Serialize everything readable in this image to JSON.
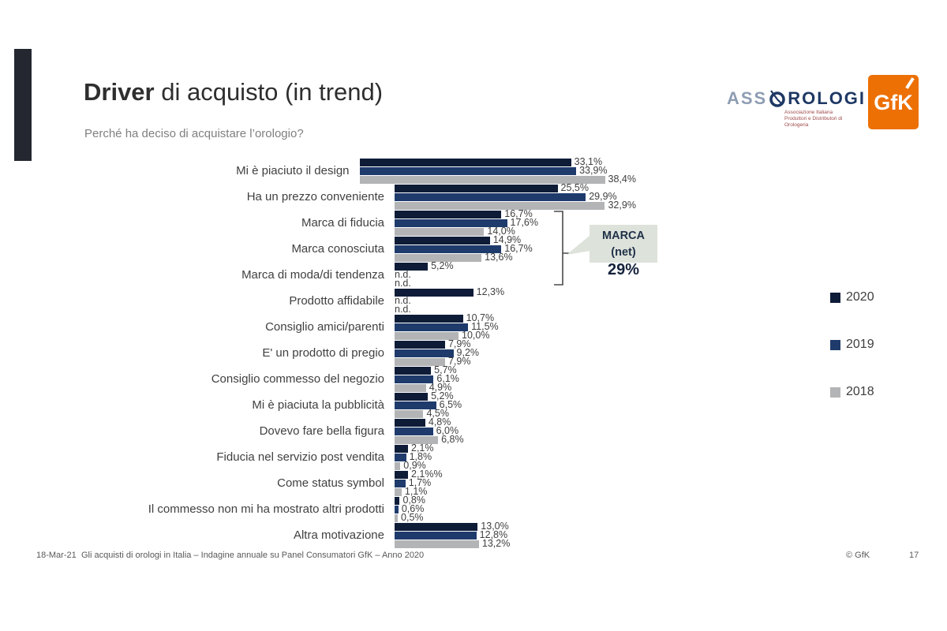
{
  "slide": {
    "title_bold": "Driver",
    "title_rest": " di acquisto (in trend)",
    "subtitle": "Perché ha deciso di acquistare l’orologio?",
    "footer": {
      "date": "18-Mar-21",
      "text": "Gli acquisti di orologi in Italia – Indagine annuale su Panel Consumatori GfK – Anno 2020",
      "copyright": "© GfK",
      "page": "17"
    },
    "logos": {
      "assorologi_pre": "ASS",
      "assorologi_post": "ROLOGI",
      "assorologi_sub1": "Associazione Italiana",
      "assorologi_sub2": "Produttori e Distributori di Orologeria",
      "gfk": "GfK"
    }
  },
  "callout": {
    "title": "MARCA",
    "subtitle": "(net)",
    "value": "29%",
    "applies_to": [
      "Marca di fiducia",
      "Marca conosciuta",
      "Marca di moda/di tendenza"
    ]
  },
  "chart_data": {
    "type": "bar",
    "orientation": "horizontal",
    "unit": "%",
    "xlim": [
      0,
      40
    ],
    "grid": false,
    "legend_position": "right",
    "categories": [
      "Mi è piaciuto il design",
      "Ha un prezzo conveniente",
      "Marca di fiducia",
      "Marca conosciuta",
      "Marca di moda/di tendenza",
      "Prodotto affidabile",
      "Consiglio amici/parenti",
      "E' un prodotto di pregio",
      "Consiglio commesso del negozio",
      "Mi è piaciuta la pubblicità",
      "Dovevo fare bella figura",
      "Fiducia nel servizio post vendita",
      "Come status symbol",
      "Il commesso non mi ha mostrato altri prodotti",
      "Altra motivazione"
    ],
    "series": [
      {
        "name": "2020",
        "color": "#0e1c38",
        "values": [
          33.1,
          25.5,
          16.7,
          14.9,
          5.2,
          12.3,
          10.7,
          7.9,
          5.7,
          5.2,
          4.8,
          2.1,
          2.1,
          0.8,
          13.0
        ],
        "labels": [
          "33,1%",
          "25,5%",
          "16,7%",
          "14,9%",
          "5,2%",
          "12,3%",
          "10,7%",
          "7,9%",
          "5,7%",
          "5,2%",
          "4,8%",
          "2,1%",
          "2,1%%",
          "0,8%",
          "13,0%"
        ]
      },
      {
        "name": "2019",
        "color": "#1f3b6c",
        "values": [
          33.9,
          29.9,
          17.6,
          16.7,
          null,
          null,
          11.5,
          9.2,
          6.1,
          6.5,
          6.0,
          1.8,
          1.7,
          0.6,
          12.8
        ],
        "labels": [
          "33,9%",
          "29,9%",
          "17,6%",
          "16,7%",
          "n.d.",
          "n.d.",
          "11,5%",
          "9,2%",
          "6,1%",
          "6,5%",
          "6,0%",
          "1,8%",
          "1,7%",
          "0,6%",
          "12,8%"
        ]
      },
      {
        "name": "2018",
        "color": "#b2b4b6",
        "values": [
          38.4,
          32.9,
          14.0,
          13.6,
          null,
          null,
          10.0,
          7.9,
          4.9,
          4.5,
          6.8,
          0.9,
          1.1,
          0.5,
          13.2
        ],
        "labels": [
          "38,4%",
          "32,9%",
          "14,0%",
          "13,6%",
          "n.d.",
          "n.d.",
          "10,0%",
          "7,9%",
          "4,9%",
          "4,5%",
          "6,8%",
          "0,9%",
          "1,1%",
          "0,5%",
          "13,2%"
        ]
      }
    ]
  }
}
